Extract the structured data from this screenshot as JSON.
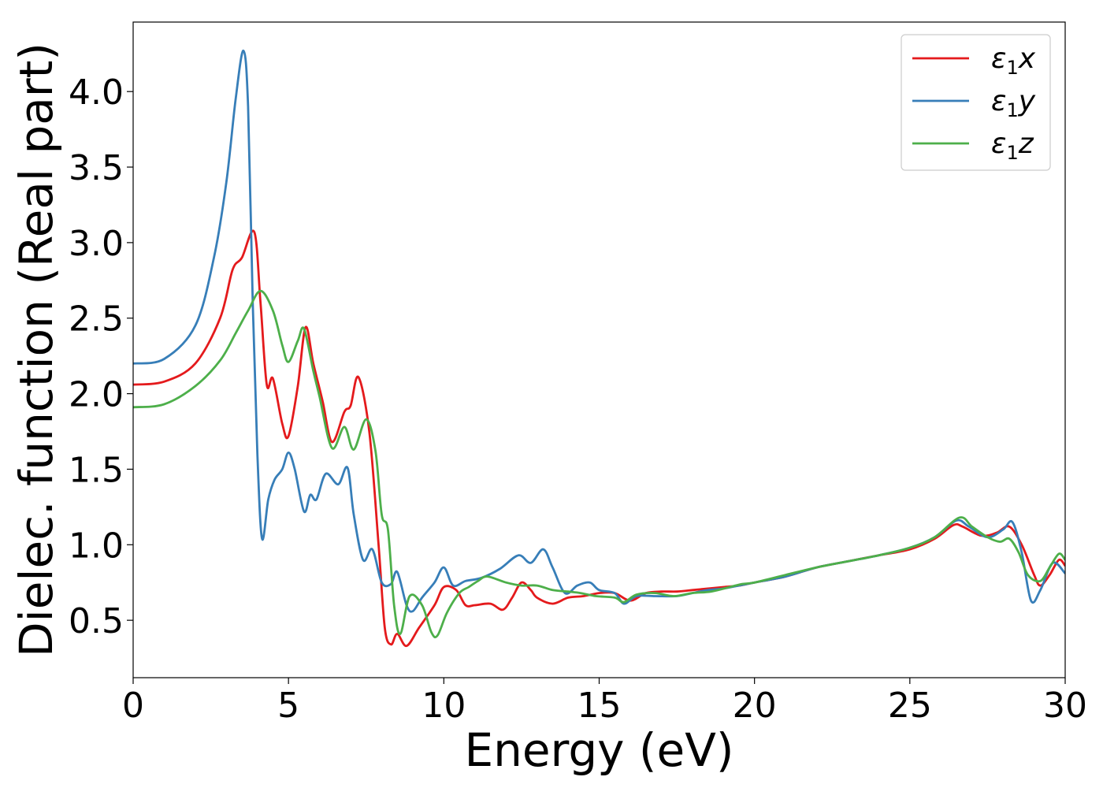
{
  "chart_data": {
    "type": "line",
    "xlabel": "Energy (eV)",
    "ylabel": "Dielec. function (Real part)",
    "xlim": [
      0,
      30
    ],
    "ylim": [
      0.12,
      4.46
    ],
    "xticks": [
      0,
      5,
      10,
      15,
      20,
      25,
      30
    ],
    "xtick_labels": [
      "0",
      "5",
      "10",
      "15",
      "20",
      "25",
      "30"
    ],
    "yticks": [
      0.5,
      1.0,
      1.5,
      2.0,
      2.5,
      3.0,
      3.5,
      4.0
    ],
    "ytick_labels": [
      "0.5",
      "1.0",
      "1.5",
      "2.0",
      "2.5",
      "3.0",
      "3.5",
      "4.0"
    ],
    "grid": false,
    "legend_position": "top-right",
    "series": [
      {
        "name": "ε1x",
        "legend_base": "ε",
        "legend_sub": "1",
        "legend_var": "x",
        "color": "#e41a1c",
        "points": [
          [
            0,
            2.06
          ],
          [
            1,
            2.08
          ],
          [
            2,
            2.2
          ],
          [
            2.8,
            2.5
          ],
          [
            3.2,
            2.82
          ],
          [
            3.5,
            2.9
          ],
          [
            3.9,
            3.07
          ],
          [
            4.1,
            2.6
          ],
          [
            4.3,
            2.06
          ],
          [
            4.5,
            2.1
          ],
          [
            4.8,
            1.8
          ],
          [
            5.0,
            1.72
          ],
          [
            5.3,
            2.05
          ],
          [
            5.55,
            2.44
          ],
          [
            5.8,
            2.2
          ],
          [
            6.1,
            1.95
          ],
          [
            6.4,
            1.68
          ],
          [
            6.8,
            1.88
          ],
          [
            7.0,
            1.92
          ],
          [
            7.25,
            2.11
          ],
          [
            7.6,
            1.75
          ],
          [
            7.9,
            1.0
          ],
          [
            8.1,
            0.45
          ],
          [
            8.3,
            0.34
          ],
          [
            8.5,
            0.41
          ],
          [
            8.8,
            0.33
          ],
          [
            9.2,
            0.45
          ],
          [
            9.7,
            0.6
          ],
          [
            10.0,
            0.72
          ],
          [
            10.4,
            0.7
          ],
          [
            10.7,
            0.6
          ],
          [
            11.0,
            0.6
          ],
          [
            11.5,
            0.61
          ],
          [
            11.9,
            0.57
          ],
          [
            12.2,
            0.65
          ],
          [
            12.5,
            0.75
          ],
          [
            12.8,
            0.7
          ],
          [
            13.0,
            0.65
          ],
          [
            13.5,
            0.61
          ],
          [
            14.0,
            0.65
          ],
          [
            14.5,
            0.66
          ],
          [
            15.0,
            0.68
          ],
          [
            15.5,
            0.68
          ],
          [
            16.0,
            0.63
          ],
          [
            16.5,
            0.68
          ],
          [
            17.0,
            0.69
          ],
          [
            17.5,
            0.69
          ],
          [
            18.0,
            0.7
          ],
          [
            18.5,
            0.71
          ],
          [
            19.0,
            0.72
          ],
          [
            19.5,
            0.73
          ],
          [
            20.0,
            0.75
          ],
          [
            21.0,
            0.79
          ],
          [
            22.0,
            0.85
          ],
          [
            23.0,
            0.89
          ],
          [
            24.0,
            0.93
          ],
          [
            25.0,
            0.97
          ],
          [
            25.8,
            1.04
          ],
          [
            26.4,
            1.13
          ],
          [
            26.7,
            1.12
          ],
          [
            27.3,
            1.06
          ],
          [
            27.8,
            1.08
          ],
          [
            28.2,
            1.12
          ],
          [
            28.6,
            1.0
          ],
          [
            29.0,
            0.8
          ],
          [
            29.2,
            0.73
          ],
          [
            29.5,
            0.8
          ],
          [
            29.8,
            0.9
          ],
          [
            30.0,
            0.86
          ]
        ]
      },
      {
        "name": "ε1y",
        "legend_base": "ε",
        "legend_sub": "1",
        "legend_var": "y",
        "color": "#377eb8",
        "points": [
          [
            0,
            2.2
          ],
          [
            1,
            2.23
          ],
          [
            2,
            2.45
          ],
          [
            2.6,
            2.9
          ],
          [
            3.0,
            3.4
          ],
          [
            3.3,
            3.95
          ],
          [
            3.55,
            4.27
          ],
          [
            3.7,
            3.9
          ],
          [
            3.85,
            2.6
          ],
          [
            4.0,
            1.6
          ],
          [
            4.15,
            1.04
          ],
          [
            4.35,
            1.3
          ],
          [
            4.55,
            1.43
          ],
          [
            4.8,
            1.5
          ],
          [
            5.0,
            1.61
          ],
          [
            5.2,
            1.5
          ],
          [
            5.5,
            1.22
          ],
          [
            5.7,
            1.33
          ],
          [
            5.9,
            1.3
          ],
          [
            6.2,
            1.47
          ],
          [
            6.6,
            1.4
          ],
          [
            6.9,
            1.51
          ],
          [
            7.1,
            1.2
          ],
          [
            7.4,
            0.9
          ],
          [
            7.7,
            0.97
          ],
          [
            8.0,
            0.75
          ],
          [
            8.3,
            0.74
          ],
          [
            8.5,
            0.82
          ],
          [
            8.8,
            0.6
          ],
          [
            9.0,
            0.56
          ],
          [
            9.3,
            0.65
          ],
          [
            9.7,
            0.75
          ],
          [
            10.0,
            0.85
          ],
          [
            10.3,
            0.73
          ],
          [
            10.7,
            0.76
          ],
          [
            11.2,
            0.78
          ],
          [
            11.8,
            0.84
          ],
          [
            12.4,
            0.93
          ],
          [
            12.8,
            0.88
          ],
          [
            13.2,
            0.97
          ],
          [
            13.5,
            0.85
          ],
          [
            13.9,
            0.68
          ],
          [
            14.3,
            0.73
          ],
          [
            14.7,
            0.75
          ],
          [
            15.0,
            0.7
          ],
          [
            15.5,
            0.68
          ],
          [
            15.8,
            0.61
          ],
          [
            16.2,
            0.66
          ],
          [
            16.8,
            0.66
          ],
          [
            17.5,
            0.66
          ],
          [
            18.0,
            0.68
          ],
          [
            18.5,
            0.7
          ],
          [
            19.0,
            0.71
          ],
          [
            19.5,
            0.73
          ],
          [
            20.0,
            0.75
          ],
          [
            21.0,
            0.79
          ],
          [
            22.0,
            0.85
          ],
          [
            23.0,
            0.89
          ],
          [
            24.0,
            0.93
          ],
          [
            25.0,
            0.98
          ],
          [
            25.8,
            1.05
          ],
          [
            26.5,
            1.16
          ],
          [
            26.9,
            1.12
          ],
          [
            27.5,
            1.05
          ],
          [
            28.0,
            1.1
          ],
          [
            28.3,
            1.15
          ],
          [
            28.6,
            0.95
          ],
          [
            28.9,
            0.63
          ],
          [
            29.2,
            0.7
          ],
          [
            29.6,
            0.88
          ],
          [
            30.0,
            0.81
          ]
        ]
      },
      {
        "name": "ε1z",
        "legend_base": "ε",
        "legend_sub": "1",
        "legend_var": "z",
        "color": "#4daf4a",
        "points": [
          [
            0,
            1.91
          ],
          [
            1,
            1.93
          ],
          [
            2,
            2.05
          ],
          [
            2.8,
            2.22
          ],
          [
            3.3,
            2.4
          ],
          [
            3.7,
            2.55
          ],
          [
            4.1,
            2.68
          ],
          [
            4.5,
            2.55
          ],
          [
            4.8,
            2.32
          ],
          [
            5.0,
            2.21
          ],
          [
            5.3,
            2.35
          ],
          [
            5.5,
            2.43
          ],
          [
            5.8,
            2.15
          ],
          [
            6.0,
            1.98
          ],
          [
            6.4,
            1.64
          ],
          [
            6.8,
            1.78
          ],
          [
            7.1,
            1.63
          ],
          [
            7.5,
            1.83
          ],
          [
            7.8,
            1.62
          ],
          [
            8.0,
            1.2
          ],
          [
            8.2,
            1.1
          ],
          [
            8.4,
            0.6
          ],
          [
            8.6,
            0.41
          ],
          [
            8.9,
            0.66
          ],
          [
            9.3,
            0.6
          ],
          [
            9.6,
            0.42
          ],
          [
            9.8,
            0.4
          ],
          [
            10.1,
            0.55
          ],
          [
            10.5,
            0.68
          ],
          [
            10.8,
            0.72
          ],
          [
            11.1,
            0.76
          ],
          [
            11.4,
            0.79
          ],
          [
            12.0,
            0.75
          ],
          [
            12.5,
            0.73
          ],
          [
            13.0,
            0.73
          ],
          [
            13.5,
            0.7
          ],
          [
            14.0,
            0.69
          ],
          [
            14.4,
            0.68
          ],
          [
            14.9,
            0.66
          ],
          [
            15.5,
            0.65
          ],
          [
            15.8,
            0.62
          ],
          [
            16.2,
            0.67
          ],
          [
            16.8,
            0.68
          ],
          [
            17.4,
            0.66
          ],
          [
            18.0,
            0.68
          ],
          [
            18.6,
            0.69
          ],
          [
            19.2,
            0.72
          ],
          [
            19.6,
            0.74
          ],
          [
            20.0,
            0.75
          ],
          [
            21.0,
            0.8
          ],
          [
            22.0,
            0.85
          ],
          [
            23.0,
            0.89
          ],
          [
            24.0,
            0.93
          ],
          [
            25.0,
            0.98
          ],
          [
            25.8,
            1.05
          ],
          [
            26.6,
            1.18
          ],
          [
            27.0,
            1.12
          ],
          [
            27.5,
            1.05
          ],
          [
            27.9,
            1.02
          ],
          [
            28.2,
            1.04
          ],
          [
            28.5,
            0.95
          ],
          [
            28.8,
            0.8
          ],
          [
            29.2,
            0.76
          ],
          [
            29.5,
            0.85
          ],
          [
            29.8,
            0.94
          ],
          [
            30.0,
            0.9
          ]
        ]
      }
    ]
  }
}
